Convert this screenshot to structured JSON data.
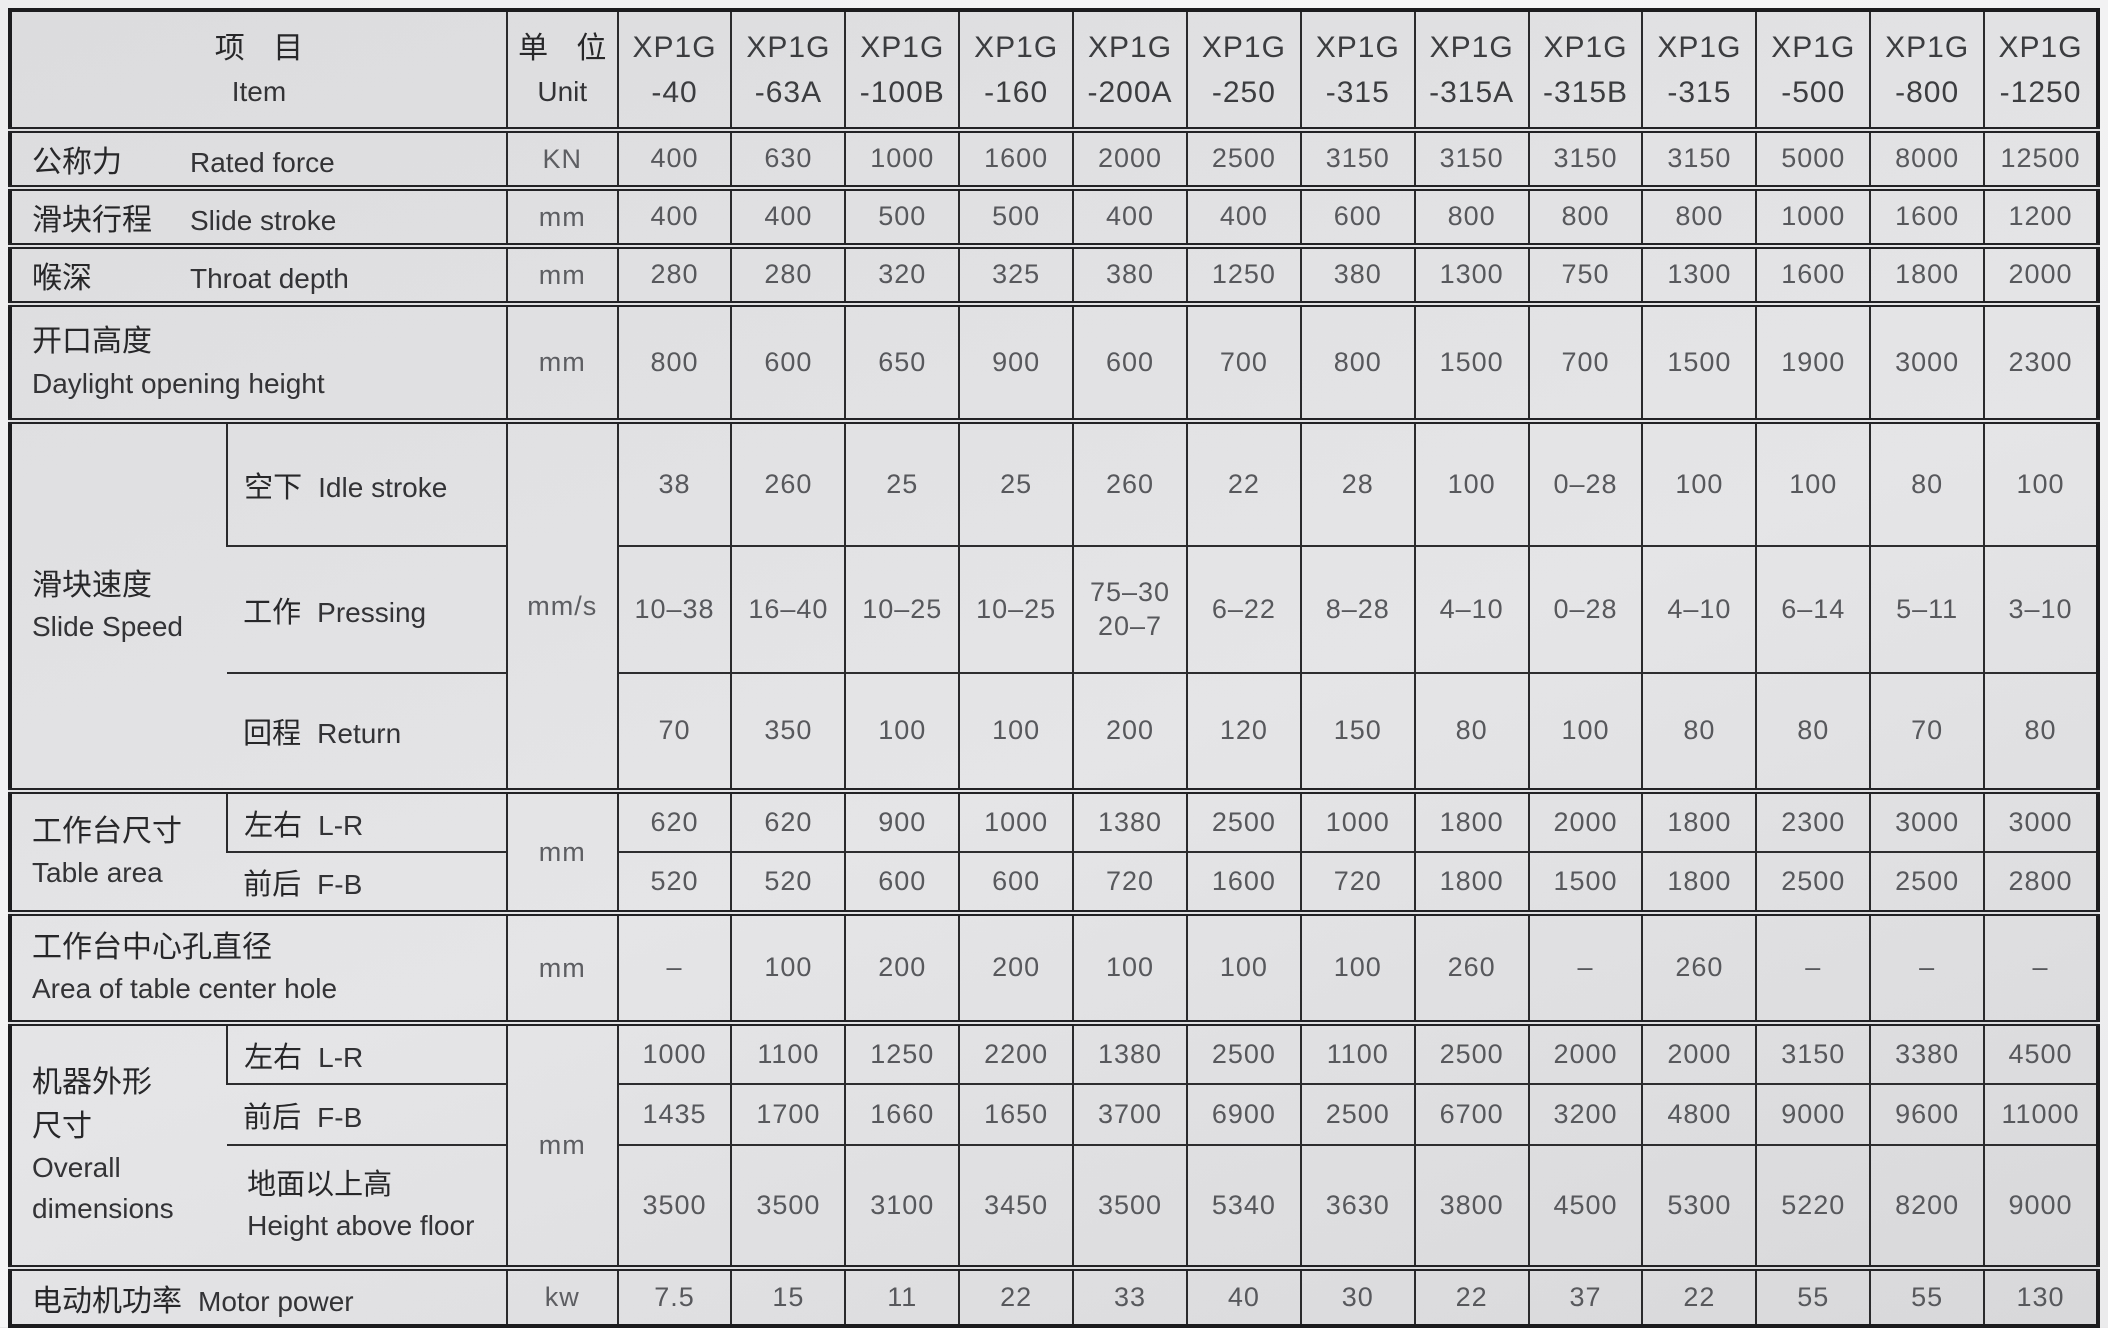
{
  "header": {
    "item": {
      "zh": "项 目",
      "en": "Item"
    },
    "unit": {
      "zh": "单 位",
      "en": "Unit"
    },
    "models": [
      "XP1G\n-40",
      "XP1G\n-63A",
      "XP1G\n-100B",
      "XP1G\n-160",
      "XP1G\n-200A",
      "XP1G\n-250",
      "XP1G\n-315",
      "XP1G\n-315A",
      "XP1G\n-315B",
      "XP1G\n-315",
      "XP1G\n-500",
      "XP1G\n-800",
      "XP1G\n-1250"
    ]
  },
  "rows": {
    "rated_force": {
      "zh": "公称力",
      "en": "Rated force",
      "unit": "KN",
      "values": [
        "400",
        "630",
        "1000",
        "1600",
        "2000",
        "2500",
        "3150",
        "3150",
        "3150",
        "3150",
        "5000",
        "8000",
        "12500"
      ]
    },
    "slide_stroke": {
      "zh": "滑块行程",
      "en": "Slide stroke",
      "unit": "mm",
      "values": [
        "400",
        "400",
        "500",
        "500",
        "400",
        "400",
        "600",
        "800",
        "800",
        "800",
        "1000",
        "1600",
        "1200"
      ]
    },
    "throat_depth": {
      "zh": "喉深",
      "en": "Throat depth",
      "unit": "mm",
      "values": [
        "280",
        "280",
        "320",
        "325",
        "380",
        "1250",
        "380",
        "1300",
        "750",
        "1300",
        "1600",
        "1800",
        "2000"
      ]
    },
    "daylight": {
      "zh": "开口高度",
      "en": "Daylight opening height",
      "unit": "mm",
      "values": [
        "800",
        "600",
        "650",
        "900",
        "600",
        "700",
        "800",
        "1500",
        "700",
        "1500",
        "1900",
        "3000",
        "2300"
      ]
    },
    "slide_speed": {
      "zh": "滑块速度",
      "en": "Slide Speed",
      "unit": "mm/s",
      "idle": {
        "zh": "空下",
        "en": "Idle stroke",
        "values": [
          "38",
          "260",
          "25",
          "25",
          "260",
          "22",
          "28",
          "100",
          "0–28",
          "100",
          "100",
          "80",
          "100"
        ]
      },
      "pressing": {
        "zh": "工作",
        "en": "Pressing",
        "values": [
          "10–38",
          "16–40",
          "10–25",
          "10–25",
          "75–30\n20–7",
          "6–22",
          "8–28",
          "4–10",
          "0–28",
          "4–10",
          "6–14",
          "5–11",
          "3–10"
        ]
      },
      "return": {
        "zh": "回程",
        "en": "Return",
        "values": [
          "70",
          "350",
          "100",
          "100",
          "200",
          "120",
          "150",
          "80",
          "100",
          "80",
          "80",
          "70",
          "80"
        ]
      }
    },
    "table_area": {
      "zh": "工作台尺寸",
      "en": "Table area",
      "unit": "mm",
      "lr": {
        "zh": "左右",
        "en": "L-R",
        "values": [
          "620",
          "620",
          "900",
          "1000",
          "1380",
          "2500",
          "1000",
          "1800",
          "2000",
          "1800",
          "2300",
          "3000",
          "3000"
        ]
      },
      "fb": {
        "zh": "前后",
        "en": "F-B",
        "values": [
          "520",
          "520",
          "600",
          "600",
          "720",
          "1600",
          "720",
          "1800",
          "1500",
          "1800",
          "2500",
          "2500",
          "2800"
        ]
      }
    },
    "center_hole": {
      "zh": "工作台中心孔直径",
      "en": "Area of table center hole",
      "unit": "mm",
      "values": [
        "–",
        "100",
        "200",
        "200",
        "100",
        "100",
        "100",
        "260",
        "–",
        "260",
        "–",
        "–",
        "–"
      ]
    },
    "overall": {
      "zh": "机器外形\n尺寸",
      "en": "Overall\ndimensions",
      "unit": "mm",
      "lr": {
        "zh": "左右",
        "en": "L-R",
        "values": [
          "1000",
          "1100",
          "1250",
          "2200",
          "1380",
          "2500",
          "1100",
          "2500",
          "2000",
          "2000",
          "3150",
          "3380",
          "4500"
        ]
      },
      "fb": {
        "zh": "前后",
        "en": "F-B",
        "values": [
          "1435",
          "1700",
          "1660",
          "1650",
          "3700",
          "6900",
          "2500",
          "6700",
          "3200",
          "4800",
          "9000",
          "9600",
          "11000"
        ]
      },
      "height": {
        "zh": "地面以上高",
        "en": "Height above floor",
        "values": [
          "3500",
          "3500",
          "3100",
          "3450",
          "3500",
          "5340",
          "3630",
          "3800",
          "4500",
          "5300",
          "5220",
          "8200",
          "9000"
        ]
      }
    },
    "motor_power": {
      "zh": "电动机功率",
      "en": "Motor power",
      "unit": "kw",
      "values": [
        "7.5",
        "15",
        "11",
        "22",
        "33",
        "40",
        "30",
        "22",
        "37",
        "22",
        "55",
        "55",
        "130"
      ]
    }
  }
}
